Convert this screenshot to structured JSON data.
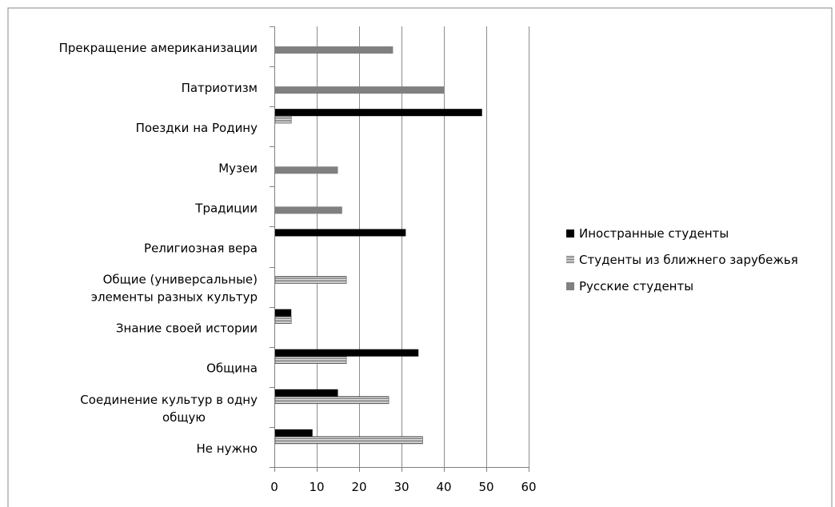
{
  "chart_data": {
    "type": "bar",
    "orientation": "horizontal",
    "categories": [
      [
        "Прекращение американизации"
      ],
      [
        "Патриотизм"
      ],
      [
        "Поездки на Родину"
      ],
      [
        "Музеи"
      ],
      [
        "Традиции"
      ],
      [
        "Религиозная вера"
      ],
      [
        "Общие (универсальные)",
        "элементы разных культур"
      ],
      [
        "Знание своей истории"
      ],
      [
        "Община"
      ],
      [
        "Соединение культур в одну",
        "общую"
      ],
      [
        "Не нужно"
      ]
    ],
    "series": [
      {
        "name": "Иностранные студенты",
        "color": "#000000",
        "pattern": "solid",
        "values": [
          0,
          0,
          49,
          0,
          0,
          31,
          0,
          4,
          34,
          15,
          9
        ]
      },
      {
        "name": "Студенты из ближнего зарубежья",
        "color": "#707070",
        "pattern": "horizontal-stripes",
        "values": [
          0,
          0,
          4,
          0,
          0,
          0,
          17,
          4,
          17,
          27,
          35
        ]
      },
      {
        "name": "Русские студенты",
        "color": "#808080",
        "pattern": "solid",
        "values": [
          28,
          40,
          0,
          15,
          16,
          0,
          0,
          0,
          0,
          0,
          0
        ]
      }
    ],
    "x_ticks": [
      "0",
      "10",
      "20",
      "30",
      "40",
      "50",
      "60"
    ],
    "xlim": [
      0,
      60
    ],
    "grid": "vertical",
    "legend_position": "right"
  }
}
